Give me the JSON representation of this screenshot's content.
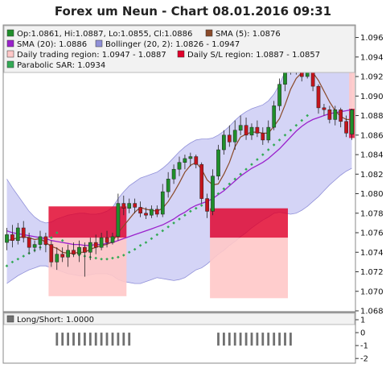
{
  "title": "Forex um Neun - Chart 08.01.2016 09:31",
  "colors": {
    "bull": "#1f8f2a",
    "bear": "#c4141c",
    "sma5": "#8a4a2a",
    "sma20": "#9a22cc",
    "bollinger_fill": "#ccccf4",
    "bollinger_line": "#9090d8",
    "daily_trading_region": "#ffc8c8",
    "daily_sl_region": "#e0002a",
    "parabolic_sar": "#33aa55",
    "longshort": "#707070",
    "panel_bg": "#f2f2f2"
  },
  "legend": [
    {
      "text": "Op:1.0861, Hi:1.0887, Lo:1.0855, Cl:1.0886",
      "icon": "candle-swatch"
    },
    {
      "text": "SMA (5): 1.0876",
      "icon": "sma5-swatch"
    },
    {
      "text": "SMA (20): 1.0886",
      "icon": "sma20-swatch"
    },
    {
      "text": "Bollinger (20, 2): 1.0826 - 1.0947",
      "icon": "bollinger-swatch"
    },
    {
      "text": "Daily trading region: 1.0947 - 1.0887",
      "icon": "trading-region-swatch"
    },
    {
      "text": "Daily S/L region: 1.0887 - 1.0857",
      "icon": "sl-region-swatch"
    },
    {
      "text": "Parabolic SAR: 1.0934",
      "icon": "sar-swatch"
    }
  ],
  "sub_legend": "Long/Short: 1.0000",
  "chart_data": {
    "type": "candlestick",
    "y_ticks": [
      1.068,
      1.07,
      1.072,
      1.074,
      1.076,
      1.078,
      1.08,
      1.082,
      1.084,
      1.086,
      1.088,
      1.09,
      1.092,
      1.094,
      1.096
    ],
    "ylim": [
      1.068,
      1.0972
    ],
    "candles": [
      [
        1.075,
        1.0765,
        1.0742,
        1.0758
      ],
      [
        1.0758,
        1.0768,
        1.0745,
        1.0752
      ],
      [
        1.0752,
        1.077,
        1.0748,
        1.0765
      ],
      [
        1.0765,
        1.0772,
        1.075,
        1.0755
      ],
      [
        1.0755,
        1.076,
        1.0738,
        1.0745
      ],
      [
        1.0745,
        1.0752,
        1.074,
        1.0748
      ],
      [
        1.0748,
        1.0762,
        1.0742,
        1.0756
      ],
      [
        1.0756,
        1.076,
        1.074,
        1.0748
      ],
      [
        1.0748,
        1.0752,
        1.0725,
        1.073
      ],
      [
        1.073,
        1.0745,
        1.0722,
        1.0738
      ],
      [
        1.0738,
        1.0745,
        1.073,
        1.0735
      ],
      [
        1.0735,
        1.0748,
        1.0725,
        1.0742
      ],
      [
        1.0742,
        1.075,
        1.0735,
        1.0738
      ],
      [
        1.0738,
        1.0752,
        1.073,
        1.0745
      ],
      [
        1.0745,
        1.075,
        1.0715,
        1.074
      ],
      [
        1.074,
        1.0755,
        1.0732,
        1.075
      ],
      [
        1.075,
        1.0758,
        1.0738,
        1.0745
      ],
      [
        1.0745,
        1.076,
        1.0742,
        1.0755
      ],
      [
        1.0755,
        1.0762,
        1.0745,
        1.075
      ],
      [
        1.075,
        1.076,
        1.0748,
        1.0756
      ],
      [
        1.0756,
        1.08,
        1.0752,
        1.079
      ],
      [
        1.079,
        1.0798,
        1.0778,
        1.0785
      ],
      [
        1.0785,
        1.0795,
        1.078,
        1.079
      ],
      [
        1.079,
        1.0795,
        1.078,
        1.0786
      ],
      [
        1.0786,
        1.0792,
        1.0776,
        1.078
      ],
      [
        1.078,
        1.0786,
        1.0774,
        1.0778
      ],
      [
        1.0778,
        1.0788,
        1.0775,
        1.0784
      ],
      [
        1.0784,
        1.0788,
        1.0776,
        1.0779
      ],
      [
        1.0779,
        1.081,
        1.0776,
        1.0802
      ],
      [
        1.0802,
        1.0822,
        1.0796,
        1.0815
      ],
      [
        1.0815,
        1.083,
        1.081,
        1.0825
      ],
      [
        1.0825,
        1.0838,
        1.0818,
        1.0832
      ],
      [
        1.0832,
        1.084,
        1.0825,
        1.0836
      ],
      [
        1.0836,
        1.0842,
        1.0828,
        1.0838
      ],
      [
        1.0838,
        1.084,
        1.0826,
        1.083
      ],
      [
        1.083,
        1.0832,
        1.079,
        1.0795
      ],
      [
        1.0795,
        1.08,
        1.0775,
        1.0782
      ],
      [
        1.0782,
        1.0825,
        1.0778,
        1.0818
      ],
      [
        1.0818,
        1.085,
        1.0814,
        1.0845
      ],
      [
        1.0845,
        1.0865,
        1.084,
        1.086
      ],
      [
        1.086,
        1.087,
        1.0848,
        1.0853
      ],
      [
        1.0853,
        1.0875,
        1.0845,
        1.0865
      ],
      [
        1.0865,
        1.088,
        1.086,
        1.087
      ],
      [
        1.087,
        1.0878,
        1.0855,
        1.086
      ],
      [
        1.086,
        1.0872,
        1.0855,
        1.0868
      ],
      [
        1.0868,
        1.0875,
        1.0858,
        1.0862
      ],
      [
        1.0862,
        1.0868,
        1.085,
        1.0855
      ],
      [
        1.0855,
        1.0875,
        1.0852,
        1.0868
      ],
      [
        1.0868,
        1.0895,
        1.0865,
        1.089
      ],
      [
        1.089,
        1.0918,
        1.0885,
        1.0912
      ],
      [
        1.0912,
        1.0935,
        1.0905,
        1.093
      ],
      [
        1.093,
        1.0938,
        1.0922,
        1.0934
      ],
      [
        1.0934,
        1.0936,
        1.0922,
        1.0926
      ],
      [
        1.0926,
        1.093,
        1.0915,
        1.092
      ],
      [
        1.092,
        1.0935,
        1.0918,
        1.093
      ],
      [
        1.093,
        1.0932,
        1.0905,
        1.091
      ],
      [
        1.091,
        1.0912,
        1.0882,
        1.0888
      ],
      [
        1.0888,
        1.0892,
        1.088,
        1.0886
      ],
      [
        1.0886,
        1.089,
        1.0872,
        1.0876
      ],
      [
        1.0876,
        1.089,
        1.087,
        1.0886
      ],
      [
        1.0886,
        1.0888,
        1.0868,
        1.0874
      ],
      [
        1.0874,
        1.088,
        1.0858,
        1.0862
      ],
      [
        1.0861,
        1.0887,
        1.0855,
        1.0886
      ]
    ],
    "sma5": [
      1.0752,
      1.0753,
      1.0755,
      1.0756,
      1.0755,
      1.0753,
      1.0754,
      1.075,
      1.0746,
      1.0744,
      1.074,
      1.0739,
      1.0739,
      1.074,
      1.074,
      1.0743,
      1.0745,
      1.0747,
      1.0748,
      1.0751,
      1.076,
      1.0767,
      1.0774,
      1.0781,
      1.0786,
      1.0784,
      1.0783,
      1.0782,
      1.0785,
      1.0792,
      1.0801,
      1.0811,
      1.0822,
      1.0829,
      1.0832,
      1.0825,
      1.0814,
      1.0809,
      1.081,
      1.082,
      1.0832,
      1.0848,
      1.0858,
      1.0861,
      1.0863,
      1.0863,
      1.0862,
      1.0862,
      1.0869,
      1.0877,
      1.0891,
      1.0907,
      1.0918,
      1.0924,
      1.0927,
      1.0924,
      1.0916,
      1.0905,
      1.0894,
      1.0885,
      1.0879,
      1.0876,
      1.0876
    ],
    "sma20": [
      1.0762,
      1.076,
      1.0759,
      1.0758,
      1.0757,
      1.0756,
      1.0755,
      1.0754,
      1.0752,
      1.0751,
      1.075,
      1.0749,
      1.0748,
      1.0748,
      1.0747,
      1.0747,
      1.0748,
      1.0748,
      1.0749,
      1.075,
      1.0752,
      1.0754,
      1.0756,
      1.0758,
      1.076,
      1.0762,
      1.0764,
      1.0766,
      1.0768,
      1.0771,
      1.0774,
      1.0778,
      1.0781,
      1.0785,
      1.0788,
      1.079,
      1.0792,
      1.0795,
      1.0799,
      1.0803,
      1.0808,
      1.0813,
      1.0818,
      1.0822,
      1.0826,
      1.0829,
      1.0832,
      1.0836,
      1.0841,
      1.0846,
      1.0852,
      1.0858,
      1.0864,
      1.0869,
      1.0873,
      1.0876,
      1.0878,
      1.088,
      1.0882,
      1.0883,
      1.0884,
      1.0885,
      1.0886
    ],
    "boll_upper": [
      1.0815,
      1.0806,
      1.0798,
      1.079,
      1.0782,
      1.0776,
      1.0772,
      1.077,
      1.0771,
      1.0774,
      1.0776,
      1.0778,
      1.0779,
      1.078,
      1.078,
      1.0779,
      1.0779,
      1.078,
      1.0782,
      1.0786,
      1.0795,
      1.0802,
      1.0808,
      1.0812,
      1.0816,
      1.0818,
      1.082,
      1.0822,
      1.0826,
      1.0831,
      1.0837,
      1.0843,
      1.0848,
      1.0852,
      1.0855,
      1.0856,
      1.0856,
      1.0857,
      1.086,
      1.0864,
      1.0869,
      1.0875,
      1.088,
      1.0884,
      1.0887,
      1.0889,
      1.0891,
      1.0895,
      1.0902,
      1.0912,
      1.0925,
      1.0938,
      1.0948,
      1.0955,
      1.0959,
      1.096,
      1.0959,
      1.0957,
      1.0955,
      1.0952,
      1.095,
      1.0948,
      1.0947
    ],
    "boll_lower": [
      1.0708,
      1.0712,
      1.0716,
      1.0719,
      1.0722,
      1.0724,
      1.0726,
      1.0726,
      1.0724,
      1.0722,
      1.072,
      1.0718,
      1.0717,
      1.0716,
      1.0716,
      1.0717,
      1.0718,
      1.0718,
      1.0718,
      1.0716,
      1.0712,
      1.071,
      1.0709,
      1.0708,
      1.0708,
      1.071,
      1.0712,
      1.0714,
      1.0713,
      1.0712,
      1.0711,
      1.0712,
      1.0714,
      1.0718,
      1.0722,
      1.0724,
      1.0728,
      1.0733,
      1.0738,
      1.0742,
      1.0747,
      1.0751,
      1.0756,
      1.076,
      1.0765,
      1.0769,
      1.0773,
      1.0776,
      1.078,
      1.0781,
      1.078,
      1.0779,
      1.078,
      1.0783,
      1.0787,
      1.0792,
      1.0797,
      1.0803,
      1.0809,
      1.0814,
      1.0819,
      1.0823,
      1.0826
    ],
    "sar": [
      1.0726,
      1.073,
      1.0733,
      1.0736,
      1.0739,
      1.0742,
      1.0745,
      1.0748,
      1.0755,
      1.076,
      1.0752,
      1.074,
      1.0738,
      1.0737,
      1.0736,
      1.0735,
      1.0734,
      1.0733,
      1.0733,
      1.0734,
      1.0735,
      1.0737,
      1.074,
      1.0743,
      1.0747,
      1.075,
      1.0754,
      1.0758,
      1.0762,
      1.0766,
      1.077,
      1.0774,
      1.0778,
      1.0782,
      1.0785,
      1.0788,
      1.0792,
      1.0796,
      1.08,
      1.0805,
      1.081,
      1.0815,
      1.082,
      1.0825,
      1.083,
      1.0835,
      1.084,
      1.0845,
      1.085,
      1.0855,
      1.086,
      1.0865,
      1.087,
      1.0875,
      1.088,
      1.094,
      1.0939,
      1.0938,
      1.0937,
      1.0936,
      1.0935,
      1.0934,
      1.0934
    ],
    "daily_trading_regions": [
      {
        "from_index": 8,
        "to_index": 21,
        "low": 1.0695,
        "high": 1.0755
      },
      {
        "from_index": 37,
        "to_index": 50,
        "low": 1.0693,
        "high": 1.0755
      },
      {
        "from_index": 62,
        "to_index": 62,
        "low": 1.0887,
        "high": 1.0947
      }
    ],
    "daily_sl_regions": [
      {
        "from_index": 8,
        "to_index": 21,
        "low": 1.0755,
        "high": 1.0787
      },
      {
        "from_index": 37,
        "to_index": 50,
        "low": 1.0755,
        "high": 1.0785
      },
      {
        "from_index": 62,
        "to_index": 62,
        "low": 1.0857,
        "high": 1.0887
      }
    ],
    "longshort": {
      "y_ticks": [
        -2,
        -1,
        0,
        1
      ],
      "ylim": [
        -2.3,
        1.5
      ],
      "bars": [
        {
          "from_index": 9,
          "to_index": 22,
          "value": -1
        },
        {
          "from_index": 38,
          "to_index": 51,
          "value": -1
        }
      ]
    }
  }
}
